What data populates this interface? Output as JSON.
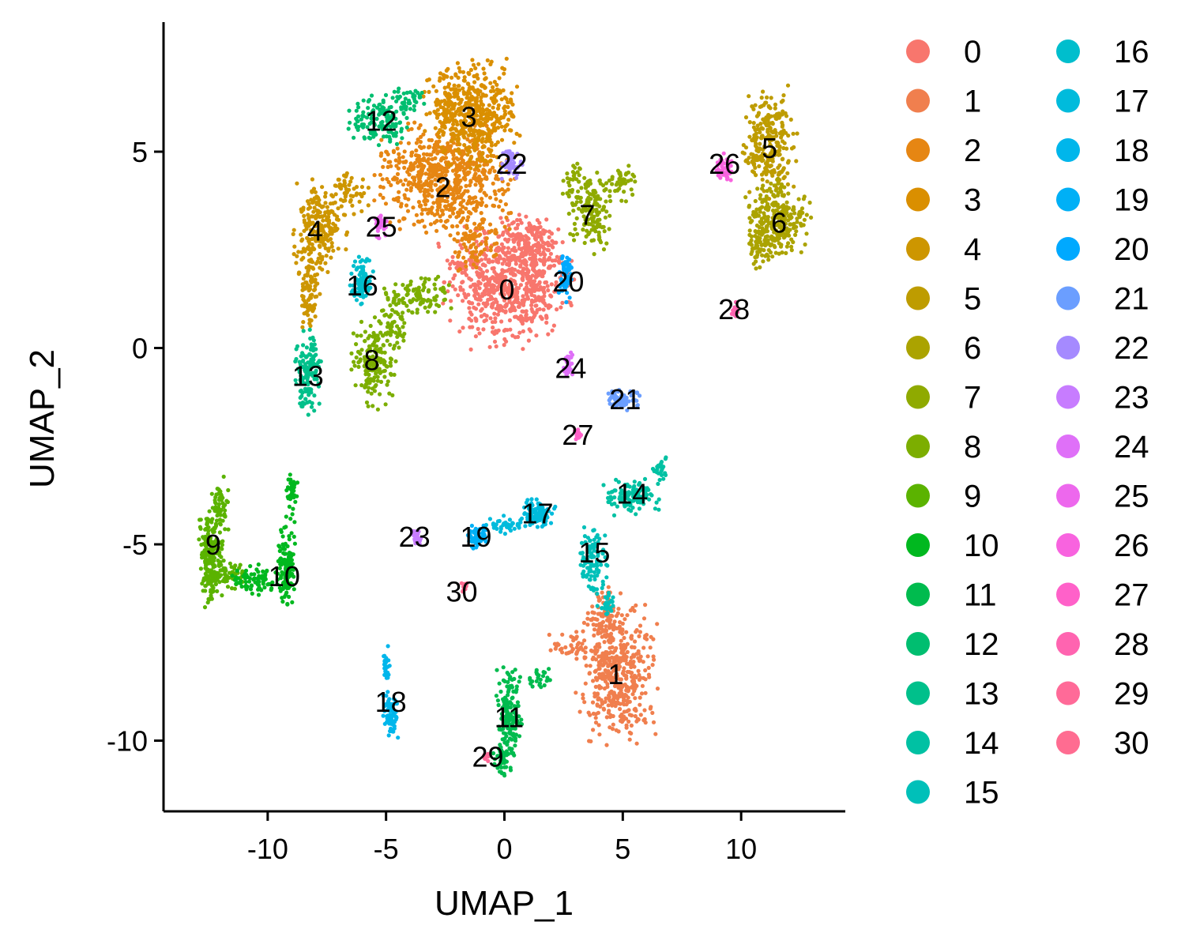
{
  "chart_data": {
    "type": "scatter",
    "title": "",
    "xlabel": "UMAP_1",
    "ylabel": "UMAP_2",
    "xlim": [
      -14.4,
      14.4
    ],
    "ylim": [
      -11.8,
      8.3
    ],
    "x_ticks": [
      -10,
      -5,
      0,
      5,
      10
    ],
    "x_tick_labels": [
      "-10",
      "-5",
      "0",
      "5",
      "10"
    ],
    "y_ticks": [
      5,
      0,
      -5,
      -10
    ],
    "y_tick_labels": [
      "5",
      "0",
      "-5",
      "-10"
    ],
    "grid": false,
    "legend_position": "right",
    "legend_columns": 2,
    "clusters": [
      {
        "id": "0",
        "color": "#F8766D",
        "center": [
          0.1,
          1.5
        ],
        "blobs": [
          [
            0.1,
            1.6,
            2.3,
            1.3,
            700
          ],
          [
            1.2,
            2.6,
            1.1,
            0.7,
            150
          ]
        ]
      },
      {
        "id": "1",
        "color": "#F07F4E",
        "center": [
          4.7,
          -8.3
        ],
        "blobs": [
          [
            4.8,
            -8.3,
            1.4,
            1.4,
            450
          ],
          [
            4.2,
            -6.8,
            0.6,
            0.8,
            80
          ],
          [
            2.8,
            -7.6,
            0.9,
            0.3,
            40
          ]
        ]
      },
      {
        "id": "2",
        "color": "#E68613",
        "center": [
          -2.6,
          4.1
        ],
        "blobs": [
          [
            -2.5,
            4.3,
            2.4,
            1.2,
            650
          ],
          [
            -1.3,
            2.6,
            0.9,
            0.6,
            80
          ]
        ]
      },
      {
        "id": "3",
        "color": "#DA8F00",
        "center": [
          -1.5,
          5.9
        ],
        "blobs": [
          [
            -1.4,
            6.0,
            1.6,
            1.1,
            500
          ]
        ]
      },
      {
        "id": "4",
        "color": "#CD9600",
        "center": [
          -8.0,
          3.0
        ],
        "blobs": [
          [
            -7.8,
            3.0,
            0.9,
            1.0,
            220
          ],
          [
            -8.3,
            1.5,
            0.4,
            0.9,
            90
          ],
          [
            -6.5,
            4.0,
            0.8,
            0.5,
            50
          ]
        ]
      },
      {
        "id": "5",
        "color": "#BE9C00",
        "center": [
          11.2,
          5.1
        ],
        "blobs": [
          [
            11.2,
            5.2,
            0.9,
            1.2,
            260
          ]
        ]
      },
      {
        "id": "6",
        "color": "#ABA300",
        "center": [
          11.6,
          3.2
        ],
        "blobs": [
          [
            11.6,
            3.3,
            1.1,
            0.8,
            260
          ],
          [
            10.8,
            2.6,
            0.5,
            0.5,
            60
          ]
        ]
      },
      {
        "id": "7",
        "color": "#8FAA00",
        "center": [
          3.5,
          3.4
        ],
        "blobs": [
          [
            3.7,
            3.5,
            0.8,
            0.9,
            150
          ],
          [
            4.9,
            4.2,
            0.5,
            0.4,
            40
          ],
          [
            2.9,
            4.2,
            0.4,
            0.5,
            30
          ]
        ]
      },
      {
        "id": "8",
        "color": "#7CAE00",
        "center": [
          -5.6,
          -0.3
        ],
        "blobs": [
          [
            -5.6,
            -0.4,
            0.8,
            0.9,
            160
          ],
          [
            -3.6,
            1.3,
            1.2,
            0.4,
            100
          ],
          [
            -4.8,
            0.6,
            0.6,
            0.5,
            60
          ]
        ]
      },
      {
        "id": "9",
        "color": "#5BB300",
        "center": [
          -12.3,
          -5.0
        ],
        "blobs": [
          [
            -12.4,
            -5.3,
            0.45,
            1.1,
            220
          ],
          [
            -11.7,
            -5.8,
            0.6,
            0.3,
            60
          ],
          [
            -12.0,
            -4.0,
            0.3,
            0.6,
            50
          ]
        ]
      },
      {
        "id": "10",
        "color": "#00B81F",
        "center": [
          -9.3,
          -5.8
        ],
        "blobs": [
          [
            -9.2,
            -5.5,
            0.35,
            0.9,
            120
          ],
          [
            -10.4,
            -5.9,
            0.9,
            0.3,
            80
          ],
          [
            -9.0,
            -3.8,
            0.2,
            0.6,
            40
          ]
        ]
      },
      {
        "id": "11",
        "color": "#00BB4E",
        "center": [
          0.2,
          -9.4
        ],
        "blobs": [
          [
            0.2,
            -9.3,
            0.45,
            1.0,
            160
          ],
          [
            -0.1,
            -10.5,
            0.3,
            0.4,
            40
          ],
          [
            1.5,
            -8.4,
            0.5,
            0.2,
            25
          ]
        ]
      },
      {
        "id": "12",
        "color": "#00BE70",
        "center": [
          -5.2,
          5.8
        ],
        "blobs": [
          [
            -5.2,
            5.8,
            1.2,
            0.5,
            140
          ],
          [
            -4.0,
            6.3,
            0.7,
            0.3,
            40
          ]
        ]
      },
      {
        "id": "13",
        "color": "#00C08B",
        "center": [
          -8.3,
          -0.7
        ],
        "blobs": [
          [
            -8.3,
            -0.6,
            0.5,
            0.9,
            130
          ]
        ]
      },
      {
        "id": "14",
        "color": "#00C1A3",
        "center": [
          5.4,
          -3.7
        ],
        "blobs": [
          [
            5.4,
            -3.8,
            1.1,
            0.4,
            110
          ],
          [
            6.6,
            -3.1,
            0.3,
            0.3,
            25
          ]
        ]
      },
      {
        "id": "15",
        "color": "#00C0B9",
        "center": [
          3.8,
          -5.2
        ],
        "blobs": [
          [
            3.7,
            -5.4,
            0.5,
            0.7,
            100
          ],
          [
            4.3,
            -6.5,
            0.4,
            0.3,
            30
          ]
        ]
      },
      {
        "id": "16",
        "color": "#00BECD",
        "center": [
          -6.0,
          1.6
        ],
        "blobs": [
          [
            -6.0,
            1.7,
            0.4,
            0.5,
            90
          ]
        ]
      },
      {
        "id": "17",
        "color": "#00BBDC",
        "center": [
          1.4,
          -4.2
        ],
        "blobs": [
          [
            1.4,
            -4.2,
            0.6,
            0.35,
            100
          ],
          [
            0.0,
            -4.5,
            0.8,
            0.2,
            40
          ]
        ]
      },
      {
        "id": "18",
        "color": "#00B6EB",
        "center": [
          -4.8,
          -9.0
        ],
        "blobs": [
          [
            -4.8,
            -9.3,
            0.25,
            0.5,
            80
          ],
          [
            -5.0,
            -8.1,
            0.12,
            0.45,
            25
          ]
        ]
      },
      {
        "id": "19",
        "color": "#00B0F6",
        "center": [
          -1.2,
          -4.8
        ],
        "blobs": [
          [
            -1.2,
            -4.8,
            0.35,
            0.25,
            60
          ]
        ]
      },
      {
        "id": "20",
        "color": "#00A9FF",
        "center": [
          2.7,
          1.7
        ],
        "blobs": [
          [
            2.6,
            1.8,
            0.25,
            0.5,
            55
          ]
        ]
      },
      {
        "id": "21",
        "color": "#6B9EFF",
        "center": [
          5.1,
          -1.3
        ],
        "blobs": [
          [
            5.0,
            -1.3,
            0.6,
            0.22,
            60
          ]
        ]
      },
      {
        "id": "22",
        "color": "#A58AFF",
        "center": [
          0.3,
          4.7
        ],
        "blobs": [
          [
            0.3,
            4.7,
            0.35,
            0.35,
            50
          ]
        ]
      },
      {
        "id": "23",
        "color": "#C77CFF",
        "center": [
          -3.8,
          -4.8
        ],
        "blobs": [
          [
            -3.7,
            -4.8,
            0.18,
            0.22,
            30
          ]
        ]
      },
      {
        "id": "24",
        "color": "#DF70F8",
        "center": [
          2.8,
          -0.5
        ],
        "blobs": [
          [
            2.7,
            -0.4,
            0.2,
            0.35,
            30
          ]
        ]
      },
      {
        "id": "25",
        "color": "#ED68ED",
        "center": [
          -5.2,
          3.1
        ],
        "blobs": [
          [
            -5.2,
            3.1,
            0.2,
            0.25,
            30
          ]
        ]
      },
      {
        "id": "26",
        "color": "#F863DF",
        "center": [
          9.3,
          4.7
        ],
        "blobs": [
          [
            9.3,
            4.6,
            0.3,
            0.3,
            40
          ]
        ]
      },
      {
        "id": "27",
        "color": "#FF61C9",
        "center": [
          3.1,
          -2.2
        ],
        "blobs": [
          [
            3.1,
            -2.2,
            0.15,
            0.12,
            20
          ]
        ]
      },
      {
        "id": "28",
        "color": "#FF64B0",
        "center": [
          9.7,
          1.0
        ],
        "blobs": [
          [
            9.7,
            1.0,
            0.12,
            0.25,
            15
          ]
        ]
      },
      {
        "id": "29",
        "color": "#FF6A98",
        "center": [
          -0.7,
          -10.4
        ],
        "blobs": [
          [
            -0.8,
            -10.4,
            0.15,
            0.12,
            15
          ]
        ]
      },
      {
        "id": "30",
        "color": "#FF6C91",
        "center": [
          -1.8,
          -6.2
        ],
        "blobs": [
          [
            -1.7,
            -6.1,
            0.1,
            0.15,
            12
          ]
        ]
      }
    ]
  }
}
